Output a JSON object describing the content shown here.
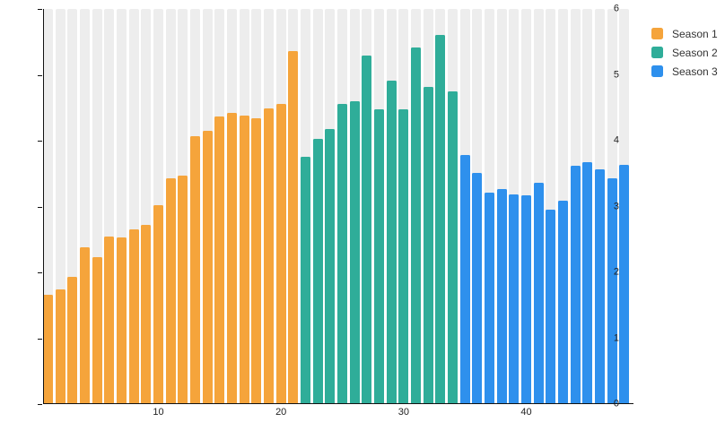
{
  "chart_data": {
    "type": "bar",
    "title": "",
    "xlabel": "",
    "ylabel": "",
    "ylim": [
      0,
      6
    ],
    "y_ticks": [
      0,
      1,
      2,
      3,
      4,
      5,
      6
    ],
    "x_ticks": [
      10,
      20,
      30,
      40
    ],
    "total_bars": 48,
    "grid": "off",
    "background_columns": true,
    "legend_position": "top-right",
    "series": [
      {
        "name": "Season 1",
        "color": "#F5A43B",
        "x_start": 1,
        "values": [
          1.65,
          1.73,
          1.92,
          2.38,
          2.23,
          2.54,
          2.53,
          2.64,
          2.72,
          3.02,
          3.42,
          3.46,
          4.06,
          4.14,
          4.36,
          4.42,
          4.38,
          4.34,
          4.49,
          4.55,
          5.36
        ]
      },
      {
        "name": "Season 2",
        "color": "#2FAD99",
        "x_start": 22,
        "values": [
          3.75,
          4.02,
          4.17,
          4.55,
          4.6,
          5.29,
          4.47,
          4.91,
          4.48,
          5.42,
          4.82,
          5.61,
          4.74
        ]
      },
      {
        "name": "Season 3",
        "color": "#2E90ED",
        "x_start": 35,
        "values": [
          3.78,
          3.51,
          3.2,
          3.26,
          3.18,
          3.16,
          3.35,
          2.95,
          3.08,
          3.62,
          3.67,
          3.56,
          3.43,
          3.63
        ]
      }
    ]
  },
  "legend": {
    "items": [
      {
        "label": "Season 1",
        "color": "#F5A43B"
      },
      {
        "label": "Season 2",
        "color": "#2FAD99"
      },
      {
        "label": "Season 3",
        "color": "#2E90ED"
      }
    ]
  },
  "colors": {
    "background": "#ffffff",
    "backdrop_column": "#ededed",
    "axis": "#111111",
    "tick_text": "#222222",
    "legend_text": "#333333"
  }
}
